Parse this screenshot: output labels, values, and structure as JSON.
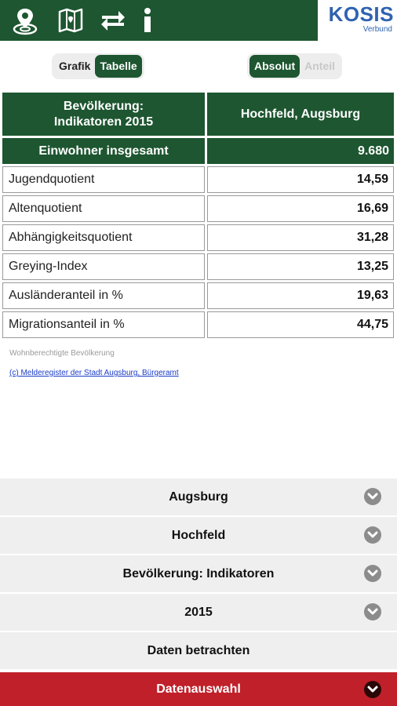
{
  "header": {
    "icons": [
      "location-pin-icon",
      "map-icon",
      "swap-arrows-icon",
      "info-icon"
    ],
    "logo_main": "KOSIS",
    "logo_sub": "Verbund"
  },
  "view_toggle": {
    "options": [
      "Grafik",
      "Tabelle"
    ],
    "selected": "Tabelle"
  },
  "mode_toggle": {
    "options": [
      "Absolut",
      "Anteil"
    ],
    "selected": "Absolut"
  },
  "table": {
    "header_left": "Bevölkerung:\nIndikatoren 2015",
    "header_right": "Hochfeld, Augsburg",
    "total": {
      "label": "Einwohner insgesamt",
      "value": "9.680"
    },
    "rows": [
      {
        "label": "Jugendquotient",
        "value": "14,59"
      },
      {
        "label": "Altenquotient",
        "value": "16,69"
      },
      {
        "label": "Abhängigkeitsquotient",
        "value": "31,28"
      },
      {
        "label": "Greying-Index",
        "value": "13,25"
      },
      {
        "label": "Ausländeranteil in %",
        "value": "19,63"
      },
      {
        "label": "Migrationsanteil in %",
        "value": "44,75"
      }
    ]
  },
  "note": "Wohnberechtigte Bevölkerung",
  "source": "(c) Melderegister der Stadt Augsburg, Bürgeramt",
  "panels": [
    {
      "label": "Augsburg"
    },
    {
      "label": "Hochfeld"
    },
    {
      "label": "Bevölkerung: Indikatoren"
    },
    {
      "label": "2015"
    },
    {
      "label": "Daten betrachten"
    },
    {
      "label": "Datenauswahl"
    }
  ],
  "colors": {
    "brand_green": "#1d5630",
    "accent_red": "#c0202a",
    "logo_blue": "#2f63b0"
  }
}
